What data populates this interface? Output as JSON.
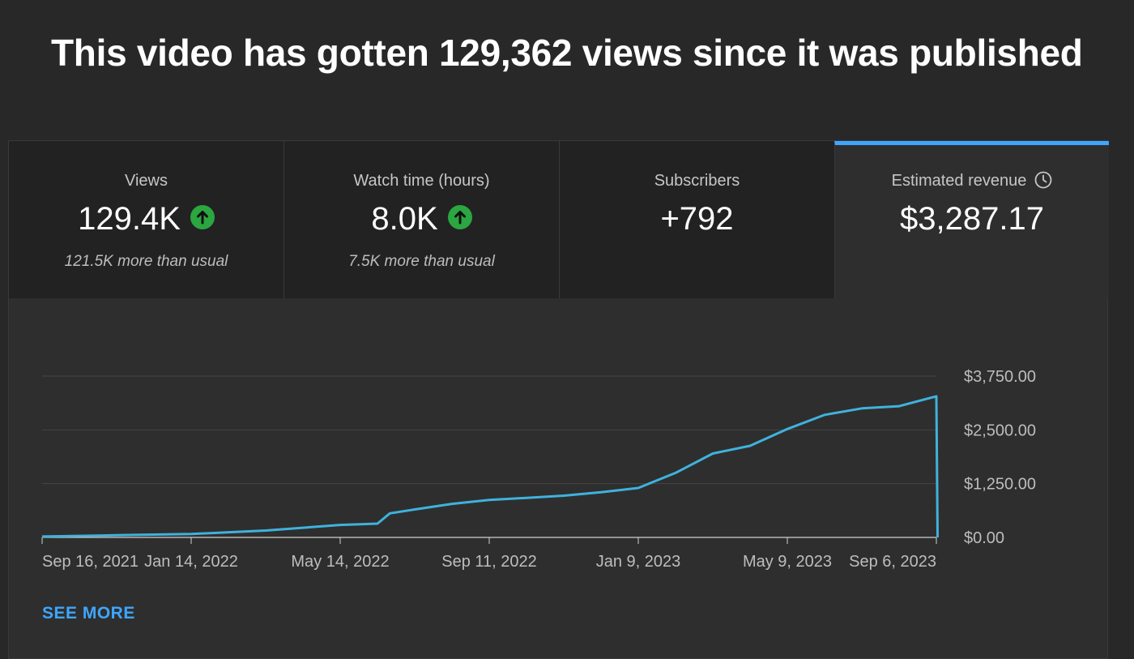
{
  "headline": "This video has gotten 129,362 views since it was published",
  "metrics": [
    {
      "label": "Views",
      "value": "129.4K",
      "trend_icon": "arrow-up-circle-icon",
      "note": "121.5K more than usual"
    },
    {
      "label": "Watch time (hours)",
      "value": "8.0K",
      "trend_icon": "arrow-up-circle-icon",
      "note": "7.5K more than usual"
    },
    {
      "label": "Subscribers",
      "value": "+792"
    },
    {
      "label": "Estimated revenue",
      "value": "$3,287.17",
      "info_icon": "clock-icon",
      "selected": true
    }
  ],
  "colors": {
    "accent": "#3ea6ff",
    "line": "#3fb2dd",
    "trend_up": "#2ba640",
    "background": "#282828"
  },
  "chart_data": {
    "type": "line",
    "title": "",
    "xlabel": "",
    "ylabel": "",
    "x_tick_labels": [
      "Sep 16, 2021",
      "Jan 14, 2022",
      "May 14, 2022",
      "Sep 11, 2022",
      "Jan 9, 2023",
      "May 9, 2023",
      "Sep 6, 2023"
    ],
    "y_tick_labels": [
      "$0.00",
      "$1,250.00",
      "$2,500.00",
      "$3,750.00"
    ],
    "ylim": [
      0,
      3750
    ],
    "y_axis_side": "right",
    "grid": true,
    "series": [
      {
        "x": [
          "2021-09-16",
          "2021-11-15",
          "2022-01-14",
          "2022-03-15",
          "2022-05-14",
          "2022-06-13",
          "2022-06-23",
          "2022-07-13",
          "2022-08-12",
          "2022-09-11",
          "2022-10-11",
          "2022-11-10",
          "2022-12-10",
          "2023-01-09",
          "2023-02-08",
          "2023-03-10",
          "2023-04-09",
          "2023-05-09",
          "2023-06-08",
          "2023-07-08",
          "2023-08-07",
          "2023-09-06",
          "2023-09-07"
        ],
        "y": [
          20,
          50,
          80,
          160,
          290,
          320,
          560,
          650,
          780,
          870,
          920,
          970,
          1050,
          1150,
          1500,
          1950,
          2130,
          2520,
          2850,
          3000,
          3050,
          3280,
          0
        ]
      }
    ]
  },
  "see_more": "SEE MORE"
}
